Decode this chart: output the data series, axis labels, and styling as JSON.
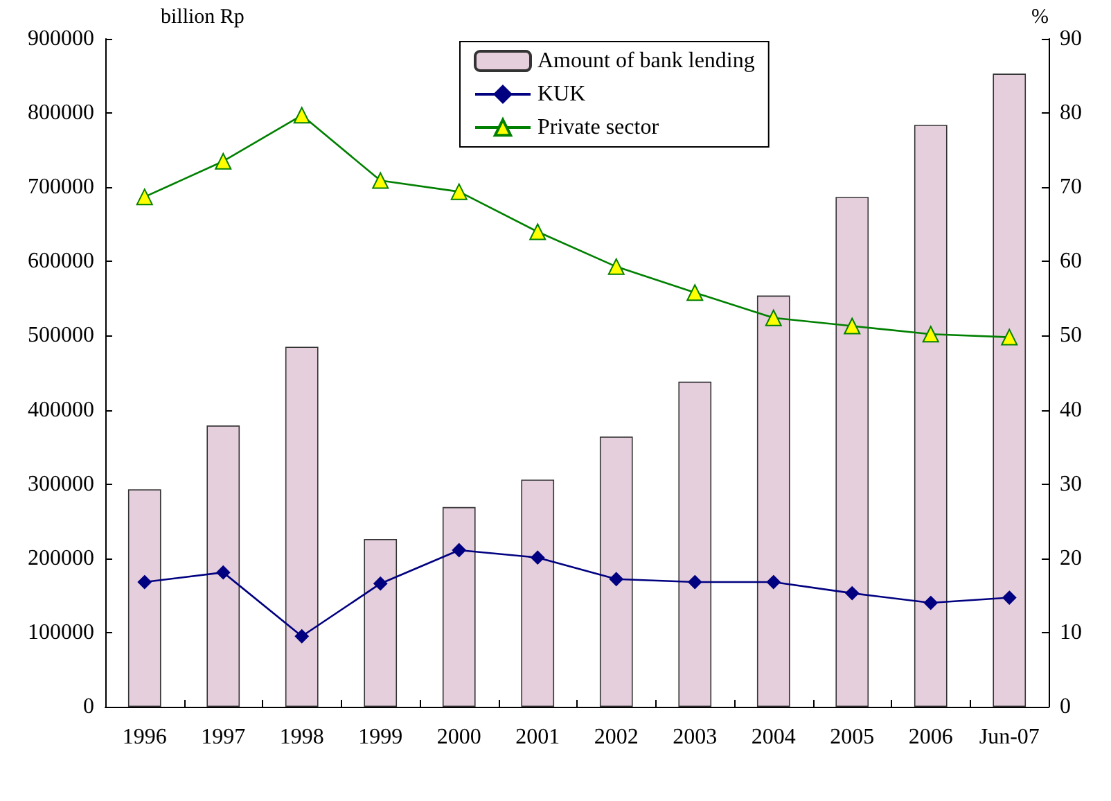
{
  "chart_data": {
    "type": "bar",
    "categories": [
      "1996",
      "1997",
      "1998",
      "1999",
      "2000",
      "2001",
      "2002",
      "2003",
      "2004",
      "2005",
      "2006",
      "Jun-07"
    ],
    "series": [
      {
        "name": "Amount of bank lending",
        "color": "#e6cfdc",
        "values": [
          293000,
          379000,
          485000,
          226000,
          269000,
          306000,
          364000,
          438000,
          554000,
          687000,
          784000,
          853000
        ]
      },
      {
        "name": "KUK",
        "type": "line",
        "axis": "y2",
        "marker": "diamond",
        "color": "#000080",
        "values": [
          16.8,
          18.1,
          9.5,
          16.6,
          21.1,
          20.1,
          17.2,
          16.8,
          16.8,
          15.3,
          14.0,
          14.7
        ]
      },
      {
        "name": "Private sector",
        "type": "line",
        "axis": "y2",
        "marker": "triangle",
        "color": "#008000",
        "values": [
          68.7,
          73.5,
          79.7,
          70.9,
          69.4,
          64.0,
          59.3,
          55.8,
          52.4,
          51.3,
          50.2,
          49.8
        ]
      }
    ],
    "ylabel": "billion Rp",
    "y2label": "%",
    "ylim": [
      0,
      900000
    ],
    "yticks": [
      0,
      100000,
      200000,
      300000,
      400000,
      500000,
      600000,
      700000,
      800000,
      900000
    ],
    "y2lim": [
      0,
      90
    ],
    "y2ticks": [
      0,
      10,
      20,
      30,
      40,
      50,
      60,
      70,
      80,
      90
    ],
    "grid": false,
    "legend": "top"
  }
}
